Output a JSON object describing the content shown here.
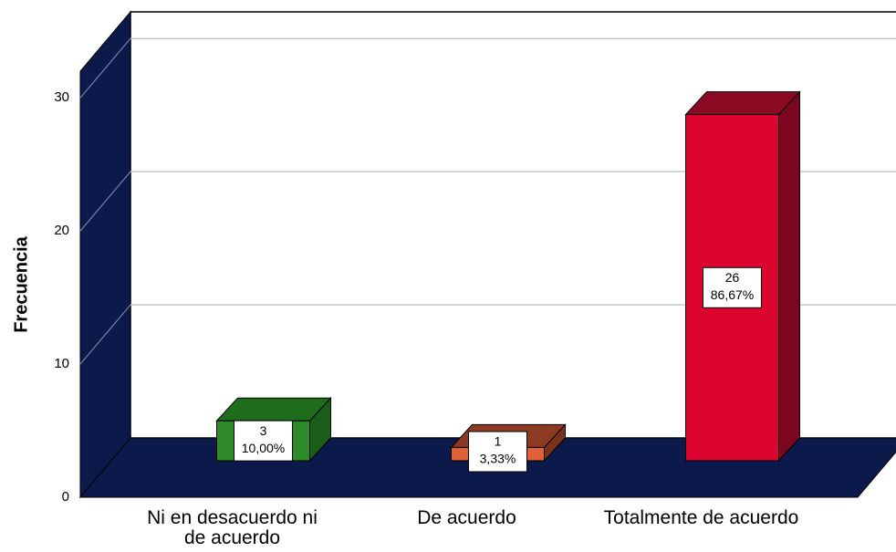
{
  "chart_data": {
    "type": "bar3d",
    "y_label": "Frecuencia",
    "categories": [
      "Ni en desacuerdo ni de acuerdo",
      "De acuerdo",
      "Totalmente de acuerdo"
    ],
    "values": [
      3,
      1,
      26
    ],
    "percent_labels": [
      "10,00%",
      "3,33%",
      "86,67%"
    ],
    "colors": [
      {
        "front": "#2f8a28",
        "top": "#1f6d1c",
        "side": "#1b5e19"
      },
      {
        "front": "#e0603a",
        "top": "#8c3b22",
        "side": "#7a321c"
      },
      {
        "front": "#dc0530",
        "top": "#8a0a24",
        "side": "#7a0620"
      }
    ],
    "wall_color": "#0b1a4b",
    "ylim": [
      0,
      32
    ],
    "yticks": [
      0,
      10,
      20,
      30
    ],
    "grid": true
  }
}
